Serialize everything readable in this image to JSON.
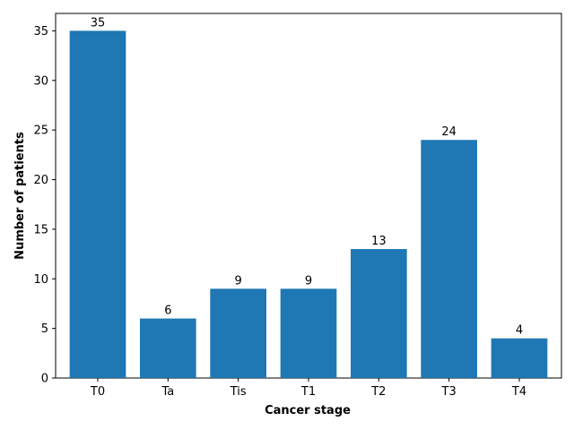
{
  "chart_data": {
    "type": "bar",
    "title": "",
    "xlabel": "Cancer stage",
    "ylabel": "Number of patients",
    "categories": [
      "T0",
      "Ta",
      "Tis",
      "T1",
      "T2",
      "T3",
      "T4"
    ],
    "values": [
      35,
      6,
      9,
      9,
      13,
      24,
      4
    ],
    "data_labels": [
      "35",
      "6",
      "9",
      "9",
      "13",
      "24",
      "4"
    ],
    "ylim": [
      0,
      36.75
    ],
    "yticks": [
      0,
      5,
      10,
      15,
      20,
      25,
      30,
      35
    ],
    "grid": false,
    "bar_color": "#1f77b4"
  }
}
